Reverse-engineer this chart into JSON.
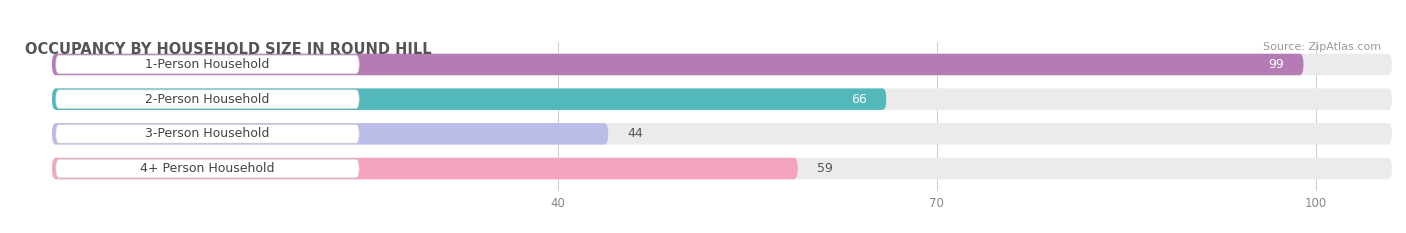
{
  "title": "OCCUPANCY BY HOUSEHOLD SIZE IN ROUND HILL",
  "source": "Source: ZipAtlas.com",
  "categories": [
    "1-Person Household",
    "2-Person Household",
    "3-Person Household",
    "4+ Person Household"
  ],
  "values": [
    99,
    66,
    44,
    59
  ],
  "bar_colors": [
    "#b57bb5",
    "#52b8ba",
    "#bbbde8",
    "#f4a4bf"
  ],
  "xlim_min": -3,
  "xlim_max": 106,
  "xticks": [
    40,
    70,
    100
  ],
  "background_color": "#ffffff",
  "bar_bg_color": "#ebebeb",
  "title_fontsize": 10.5,
  "source_fontsize": 8,
  "label_fontsize": 9,
  "value_fontsize": 9,
  "bar_height": 0.62,
  "bar_gap": 0.38
}
